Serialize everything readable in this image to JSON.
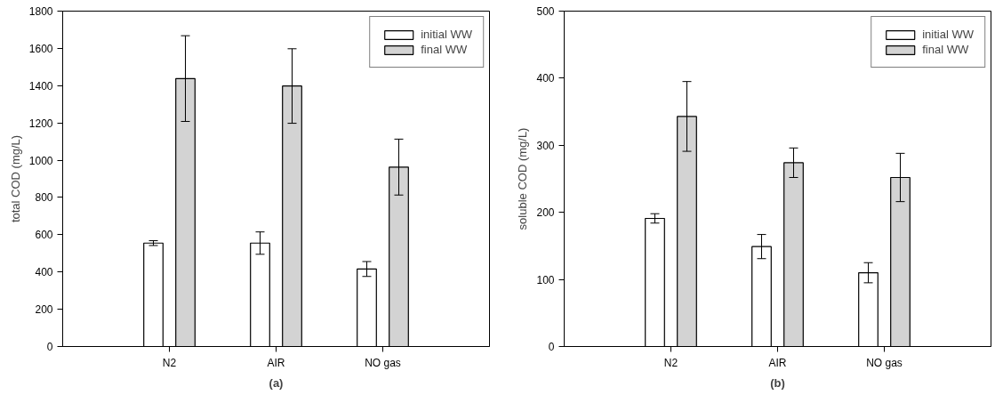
{
  "chart_data": [
    {
      "type": "bar",
      "xlabel": "(a)",
      "ylabel": "total COD (mg/L)",
      "categories": [
        "N2",
        "AIR",
        "NO gas"
      ],
      "ylim": [
        0,
        1800
      ],
      "yticks": [
        0,
        200,
        400,
        600,
        800,
        1000,
        1200,
        1400,
        1600,
        1800
      ],
      "legend": "top right",
      "grid": false,
      "series": [
        {
          "name": "initial WW",
          "color": "#ffffff",
          "values": [
            555,
            555,
            416
          ],
          "errors": [
            13,
            60,
            40
          ]
        },
        {
          "name": "final WW",
          "color": "#d3d3d3",
          "values": [
            1438,
            1398,
            963
          ],
          "errors": [
            230,
            200,
            150
          ]
        }
      ]
    },
    {
      "type": "bar",
      "xlabel": "(b)",
      "ylabel": "soluble COD (mg/L)",
      "categories": [
        "N2",
        "AIR",
        "NO gas"
      ],
      "ylim": [
        0,
        500
      ],
      "yticks": [
        0,
        100,
        200,
        300,
        400,
        500
      ],
      "legend": "top right",
      "grid": false,
      "series": [
        {
          "name": "initial WW",
          "color": "#ffffff",
          "values": [
            191,
            149,
            110
          ],
          "errors": [
            7,
            18,
            15
          ]
        },
        {
          "name": "final WW",
          "color": "#d3d3d3",
          "values": [
            343,
            274,
            252
          ],
          "errors": [
            52,
            22,
            36
          ]
        }
      ]
    }
  ]
}
